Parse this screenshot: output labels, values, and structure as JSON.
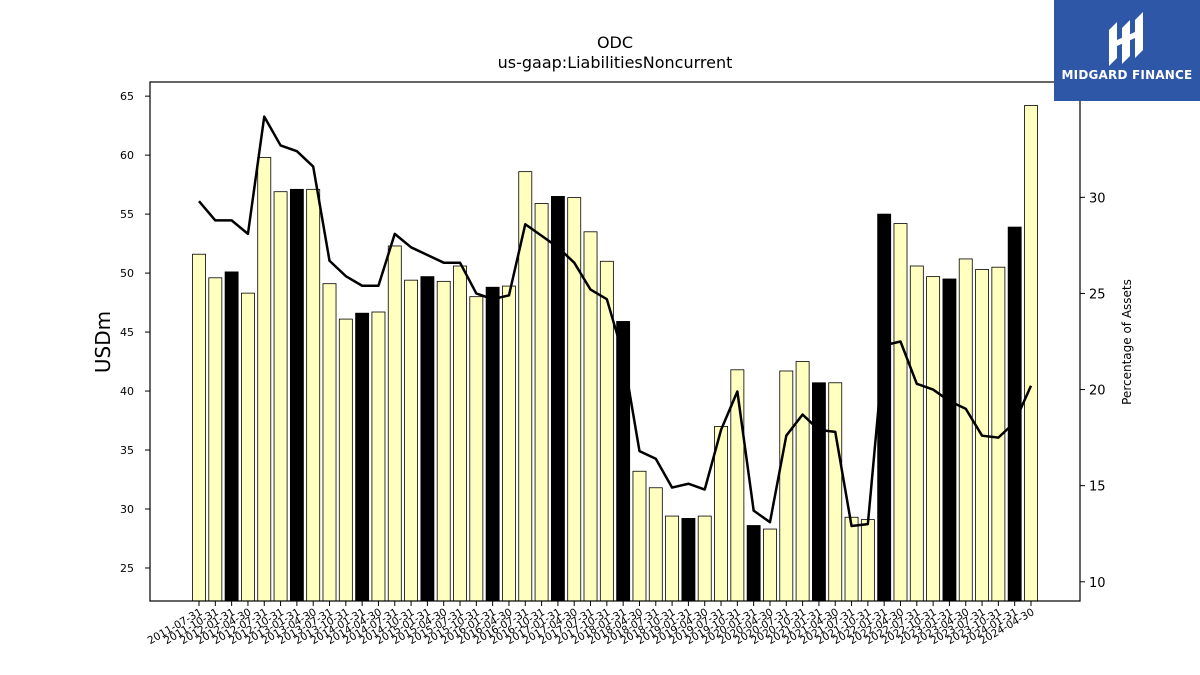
{
  "brand": {
    "name": "MIDGARD FINANCE",
    "logo_icon": "midgard-logo-icon",
    "color": "#2e57a8"
  },
  "chart_data": {
    "type": "bar",
    "title": "ODC",
    "subtitle": "us-gaap:LiabilitiesNoncurrent",
    "ylabel": "USDm",
    "y2label": "Percentage of Assets",
    "ylim": [
      22.2,
      66.2
    ],
    "y2lim": [
      9.0,
      36.0
    ],
    "yticks": [
      25,
      30,
      35,
      40,
      45,
      50,
      55,
      60,
      65
    ],
    "y2ticks": [
      10,
      15,
      20,
      25,
      30
    ],
    "categories": [
      "2011-07-31",
      "2011-10-31",
      "2012-01-31",
      "2012-04-30",
      "2012-07-31",
      "2012-10-31",
      "2013-01-31",
      "2013-04-30",
      "2013-07-31",
      "2013-10-31",
      "2014-01-31",
      "2014-04-30",
      "2014-07-31",
      "2014-10-31",
      "2015-01-31",
      "2015-04-30",
      "2015-07-31",
      "2015-10-31",
      "2016-01-31",
      "2016-04-30",
      "2016-07-31",
      "2016-10-31",
      "2017-01-31",
      "2017-04-30",
      "2017-07-31",
      "2017-10-31",
      "2018-01-31",
      "2018-04-30",
      "2018-07-31",
      "2018-10-31",
      "2019-01-31",
      "2019-04-30",
      "2019-07-31",
      "2019-10-31",
      "2020-01-31",
      "2020-04-30",
      "2020-07-31",
      "2020-10-31",
      "2021-01-31",
      "2021-04-30",
      "2021-07-31",
      "2021-10-31",
      "2022-01-31",
      "2022-04-30",
      "2022-07-31",
      "2022-10-31",
      "2023-01-31",
      "2023-04-30",
      "2023-07-31",
      "2023-10-31",
      "2024-01-31",
      "2024-04-30"
    ],
    "series": [
      {
        "type": "bar",
        "axis": "left",
        "values": [
          51.6,
          49.6,
          50.1,
          48.3,
          59.8,
          56.9,
          57.1,
          57.1,
          49.1,
          46.1,
          46.6,
          46.7,
          52.3,
          49.4,
          49.7,
          49.3,
          50.6,
          48.0,
          48.8,
          48.9,
          58.6,
          55.9,
          56.5,
          56.4,
          53.5,
          51.0,
          45.9,
          33.2,
          31.8,
          29.4,
          29.2,
          29.4,
          37.0,
          41.8,
          28.6,
          28.3,
          41.7,
          42.5,
          40.7,
          40.7,
          29.3,
          29.1,
          55.0,
          54.2,
          50.6,
          49.7,
          49.5,
          51.2,
          50.3,
          50.5,
          53.9,
          64.2
        ],
        "highlight": [
          false,
          false,
          true,
          false,
          false,
          false,
          true,
          false,
          false,
          false,
          true,
          false,
          false,
          false,
          true,
          false,
          false,
          false,
          true,
          false,
          false,
          false,
          true,
          false,
          false,
          false,
          true,
          false,
          false,
          false,
          true,
          false,
          false,
          false,
          true,
          false,
          false,
          false,
          true,
          false,
          false,
          false,
          true,
          false,
          false,
          false,
          true,
          false,
          false,
          false,
          true,
          false
        ]
      },
      {
        "type": "line",
        "axis": "right",
        "values": [
          29.8,
          28.8,
          28.8,
          28.1,
          34.2,
          32.7,
          32.4,
          31.6,
          26.7,
          25.9,
          25.4,
          25.4,
          28.1,
          27.4,
          27.0,
          26.6,
          26.6,
          25.0,
          24.7,
          24.9,
          28.6,
          28.0,
          27.4,
          26.6,
          25.2,
          24.7,
          21.8,
          16.8,
          16.4,
          14.9,
          15.1,
          14.8,
          17.9,
          19.9,
          13.7,
          13.1,
          17.6,
          18.7,
          17.9,
          17.8,
          12.9,
          13.0,
          22.3,
          22.5,
          20.3,
          20.0,
          19.4,
          19.0,
          17.6,
          17.5,
          18.3,
          20.2
        ]
      }
    ],
    "colors": {
      "bar_fill": "#ffffc0",
      "bar_highlight": "#000000",
      "bar_edge": "#000000",
      "line": "#000000"
    },
    "grid": false,
    "legend": "none"
  }
}
